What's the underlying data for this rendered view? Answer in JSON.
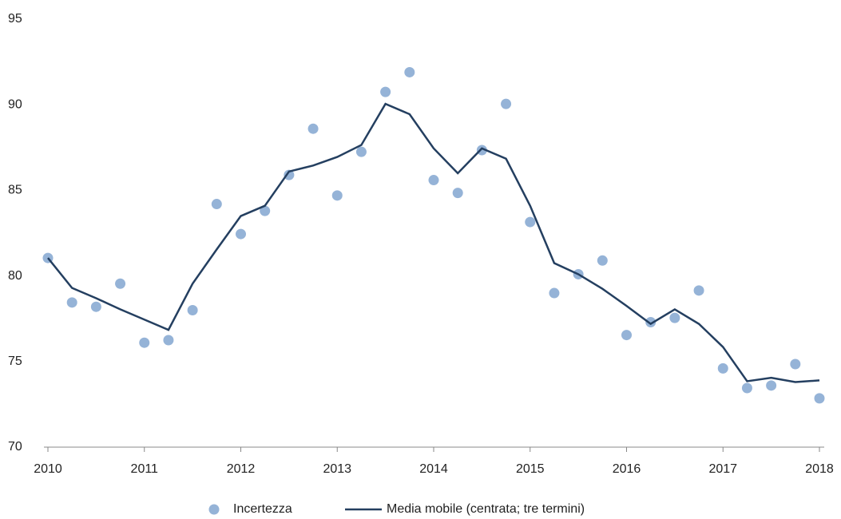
{
  "chart_data": {
    "type": "scatter-line",
    "x": [
      2010,
      2010.25,
      2010.5,
      2010.75,
      2011,
      2011.25,
      2011.5,
      2011.75,
      2012,
      2012.25,
      2012.5,
      2012.75,
      2013,
      2013.25,
      2013.5,
      2013.75,
      2014,
      2014.25,
      2014.5,
      2014.75,
      2015,
      2015.25,
      2015.5,
      2015.75,
      2016,
      2016.25,
      2016.5,
      2016.75,
      2017,
      2017.25,
      2017.5,
      2017.75,
      2018
    ],
    "series": [
      {
        "name": "Incertezza",
        "color": "#95b3d7",
        "kind": "dots",
        "values": [
          81.05,
          78.45,
          78.2,
          79.55,
          76.1,
          76.25,
          78.0,
          84.2,
          82.45,
          83.8,
          85.9,
          88.6,
          84.7,
          87.25,
          90.75,
          91.9,
          85.6,
          84.85,
          87.35,
          90.05,
          83.15,
          79.0,
          80.1,
          80.9,
          76.55,
          77.3,
          77.55,
          79.15,
          74.6,
          73.45,
          73.6,
          74.85,
          72.85
        ]
      },
      {
        "name": "Media mobile (centrata; tre termini)",
        "color": "#243f60",
        "kind": "line",
        "values": [
          81.05,
          79.3,
          78.7,
          78.05,
          77.45,
          76.85,
          79.55,
          81.55,
          83.5,
          84.1,
          86.1,
          86.45,
          86.95,
          87.65,
          90.05,
          89.45,
          87.45,
          86.0,
          87.45,
          86.85,
          84.1,
          80.75,
          80.1,
          79.25,
          78.25,
          77.2,
          78.05,
          77.2,
          75.85,
          73.85,
          74.05,
          73.8,
          73.9
        ]
      }
    ],
    "xlim": [
      2010,
      2018
    ],
    "xticks": [
      2010,
      2011,
      2012,
      2013,
      2014,
      2015,
      2016,
      2017,
      2018
    ],
    "ylim": [
      70,
      95
    ],
    "yticks": [
      70,
      75,
      80,
      85,
      90,
      95
    ],
    "grid": false,
    "legend": "bottom"
  }
}
